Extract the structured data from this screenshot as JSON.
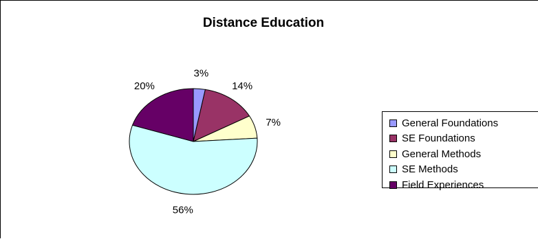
{
  "chart_data": {
    "type": "pie",
    "title": "Distance Education",
    "slices": [
      {
        "label": "General Foundations",
        "value": 3,
        "display": "3%",
        "color": "#9999ff"
      },
      {
        "label": "SE Foundations",
        "value": 14,
        "display": "14%",
        "color": "#993366"
      },
      {
        "label": "General Methods",
        "value": 7,
        "display": "7%",
        "color": "#ffffcc"
      },
      {
        "label": "SE Methods",
        "value": 56,
        "display": "56%",
        "color": "#ccffff"
      },
      {
        "label": "Field Experiences",
        "value": 20,
        "display": "20%",
        "color": "#660066"
      }
    ],
    "legend_position": "right"
  }
}
